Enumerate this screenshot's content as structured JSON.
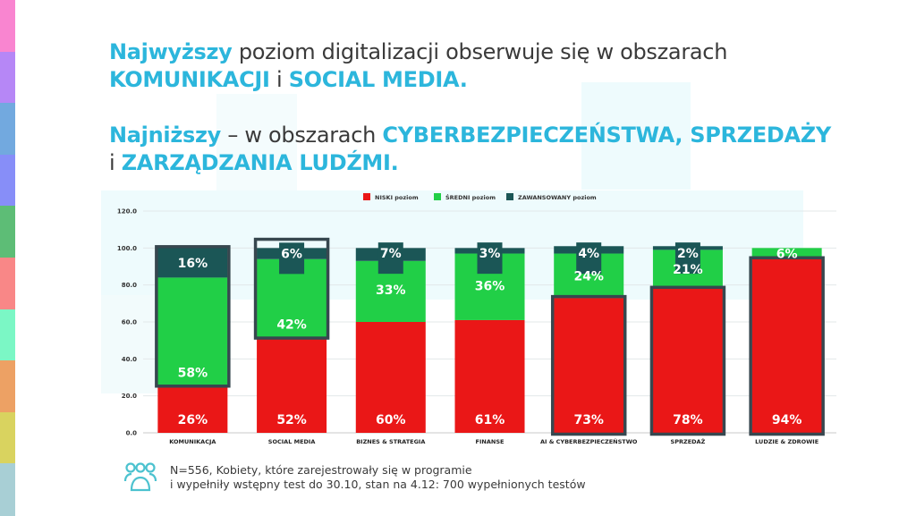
{
  "side_stripes": [
    "#f985d0",
    "#b687f6",
    "#72a9df",
    "#878ef8",
    "#5dbd76",
    "#f98787",
    "#7bf7c5",
    "#eda164",
    "#d9d35f",
    "#a8cfd5"
  ],
  "headline": {
    "line1": {
      "strong": "Najwyższy",
      "rest": " poziom digitalizacji obserwuje się w obszarach"
    },
    "line2": {
      "a": "KOMUNIKACJI",
      "mid": " i ",
      "b": "SOCIAL MEDIA."
    },
    "line3": {
      "strong": "Najniższy",
      "rest": " – w obszarach ",
      "c": "CYBERBEZPIECZEŃSTWA, SPRZEDAŻY"
    },
    "line4": {
      "pre": "i ",
      "d": "ZARZĄDZANIA LUDŹMI."
    }
  },
  "colors": {
    "accent": "#2cb6dc",
    "low": "#ea1717",
    "mid": "#21cf47",
    "adv": "#1b5656",
    "highlight": "#37474f"
  },
  "chart_data": {
    "type": "bar",
    "stacked": true,
    "title": "",
    "xlabel": "",
    "ylabel": "",
    "ylim": [
      0,
      120
    ],
    "yticks": [
      "0.0",
      "20.0",
      "40.0",
      "60.0",
      "80.0",
      "100.0",
      "120.0"
    ],
    "grid": true,
    "legend_position": "top-center",
    "categories": [
      "KOMUNIKACJA",
      "SOCIAL MEDIA",
      "BIZNES & STRATEGIA",
      "FINANSE",
      "AI & CYBERBEZPIECZEŃSTWO",
      "SPRZEDAŻ",
      "LUDZIE & ZDROWIE"
    ],
    "series": [
      {
        "name": "NISKI poziom",
        "color": "#ea1717",
        "values": [
          26,
          52,
          60,
          61,
          73,
          78,
          94
        ]
      },
      {
        "name": "ŚREDNI poziom",
        "color": "#21cf47",
        "values": [
          58,
          42,
          33,
          36,
          24,
          21,
          6
        ]
      },
      {
        "name": "ZAWANSOWANY poziom",
        "color": "#1b5656",
        "values": [
          16,
          6,
          7,
          3,
          4,
          2,
          0
        ]
      }
    ],
    "labels": [
      {
        "low": "26%",
        "mid": "58%",
        "adv": "16%"
      },
      {
        "low": "52%",
        "mid": "42%",
        "adv": "6%"
      },
      {
        "low": "60%",
        "mid": "33%",
        "adv": "7%"
      },
      {
        "low": "61%",
        "mid": "36%",
        "adv": "3%"
      },
      {
        "low": "73%",
        "mid": "24%",
        "adv": "4%"
      },
      {
        "low": "78%",
        "mid": "21%",
        "adv": "2%"
      },
      {
        "low": "94%",
        "mid": "6%",
        "adv": ""
      }
    ],
    "highlighted": [
      {
        "category": "KOMUNIKACJA",
        "segments": "ŚREDNI + ZAWANSOWANY"
      },
      {
        "category": "SOCIAL MEDIA",
        "segments": "ŚREDNI + ZAWANSOWANY"
      },
      {
        "category": "AI & CYBERBEZPIECZEŃSTWO",
        "segments": "NISKI"
      },
      {
        "category": "SPRZEDAŻ",
        "segments": "NISKI"
      },
      {
        "category": "LUDZIE & ZDROWIE",
        "segments": "NISKI"
      }
    ]
  },
  "footnote": {
    "icon": "people-group-icon",
    "line1": "N=556, Kobiety, które zarejestrowały się w programie",
    "line2": "i wypełniły wstępny test do 30.10, stan na 4.12: 700 wypełnionych testów"
  }
}
